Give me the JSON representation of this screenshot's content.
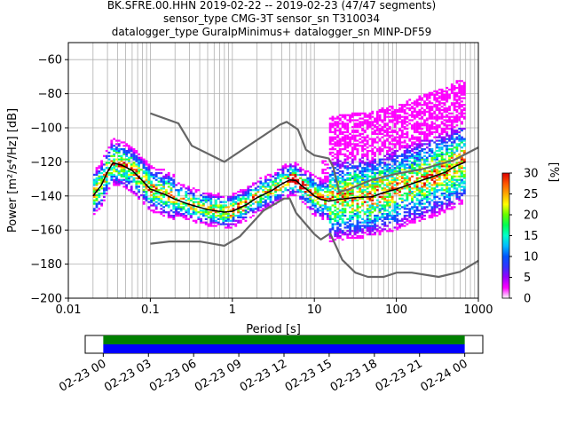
{
  "title": {
    "line1": "BK.SFRE.00.HHN   2019-02-22 -- 2019-02-23  (47/47 segments)",
    "line2": "sensor_type CMG-3T sensor_sn T310034",
    "line3": "datalogger_type GuralpMinimus+ datalogger_sn MINP-DF59"
  },
  "chart_data": [
    {
      "type": "heatmap",
      "xlabel": "Period [s]",
      "ylabel": "Power [m²/s⁴/Hz] [dB]",
      "xscale": "log",
      "xlim": [
        0.01,
        1000
      ],
      "ylim": [
        -200,
        -50
      ],
      "grid": true,
      "x_ticks": [
        {
          "v": 0.01,
          "label": "0.01"
        },
        {
          "v": 0.1,
          "label": "0.1"
        },
        {
          "v": 1,
          "label": "1"
        },
        {
          "v": 10,
          "label": "10"
        },
        {
          "v": 100,
          "label": "100"
        },
        {
          "v": 1000,
          "label": "1000"
        }
      ],
      "y_ticks": [
        {
          "v": -60,
          "label": "−60"
        },
        {
          "v": -80,
          "label": "−80"
        },
        {
          "v": -100,
          "label": "−100"
        },
        {
          "v": -120,
          "label": "−120"
        },
        {
          "v": -140,
          "label": "−140"
        },
        {
          "v": -160,
          "label": "−160"
        },
        {
          "v": -180,
          "label": "−180"
        },
        {
          "v": -200,
          "label": "−200"
        }
      ],
      "colorbar": {
        "label": "[%]",
        "range": [
          0,
          30
        ],
        "ticks": [
          {
            "v": 0,
            "label": "0"
          },
          {
            "v": 5,
            "label": "5"
          },
          {
            "v": 10,
            "label": "10"
          },
          {
            "v": 15,
            "label": "15"
          },
          {
            "v": 20,
            "label": "20"
          },
          {
            "v": 25,
            "label": "25"
          },
          {
            "v": 30,
            "label": "30"
          }
        ],
        "colors": [
          "#ffffff",
          "#ff00ff",
          "#9900ff",
          "#3333ff",
          "#0055ff",
          "#00bbff",
          "#00ffcc",
          "#00ff55",
          "#66ff00",
          "#ffff00",
          "#ffaa00",
          "#ff5500",
          "#dd0000"
        ]
      },
      "series": [
        {
          "role": "noise-model-high",
          "color": "#666666",
          "x": [
            0.1,
            0.22,
            0.32,
            0.8,
            3.8,
            4.6,
            6.3,
            7.9,
            10,
            15,
            17,
            20,
            25,
            50,
            100,
            200,
            500,
            1000
          ],
          "y": [
            -91.5,
            -97.4,
            -110.5,
            -120,
            -98.2,
            -96.5,
            -101,
            -112.8,
            -116.2,
            -118,
            -123,
            -137.5,
            -136.5,
            -130.5,
            -127,
            -124.5,
            -119,
            -111.5
          ]
        },
        {
          "role": "noise-model-low",
          "color": "#666666",
          "x": [
            0.1,
            0.17,
            0.4,
            0.8,
            1.24,
            2.4,
            4.3,
            5,
            6,
            10,
            12,
            15.6,
            21.9,
            31.6,
            45,
            70,
            101,
            154,
            328,
            600,
            1000
          ],
          "y": [
            -168,
            -166.7,
            -166.7,
            -169.2,
            -163.7,
            -148.6,
            -141.5,
            -141.5,
            -150,
            -162.4,
            -165.5,
            -162,
            -177.5,
            -185,
            -187.5,
            -187.5,
            -185,
            -185,
            -187.5,
            -184.5,
            -178
          ]
        },
        {
          "role": "mode-psd",
          "color": "#000000",
          "x": [
            0.02,
            0.025,
            0.03,
            0.035,
            0.045,
            0.06,
            0.08,
            0.1,
            0.15,
            0.2,
            0.3,
            0.5,
            0.8,
            1,
            1.5,
            2,
            3,
            4,
            5,
            6,
            7,
            8,
            10,
            12,
            15,
            20,
            30,
            50,
            70,
            100,
            150,
            200,
            300,
            400,
            500,
            700
          ],
          "y": [
            -140,
            -134,
            -126,
            -120.5,
            -122,
            -125,
            -131,
            -136,
            -139,
            -142,
            -145,
            -148,
            -149.5,
            -149,
            -145,
            -141,
            -137,
            -133,
            -130.5,
            -131,
            -134,
            -136,
            -140,
            -142,
            -143,
            -142,
            -141,
            -140.5,
            -138,
            -136,
            -133,
            -131,
            -128,
            -126,
            -123,
            -120
          ]
        }
      ]
    },
    {
      "type": "timeline",
      "x_ticks": [
        {
          "v": 0,
          "label": "02-23 00"
        },
        {
          "v": 3,
          "label": "02-23 03"
        },
        {
          "v": 6,
          "label": "02-23 06"
        },
        {
          "v": 9,
          "label": "02-23 09"
        },
        {
          "v": 12,
          "label": "02-23 12"
        },
        {
          "v": 15,
          "label": "02-23 15"
        },
        {
          "v": 18,
          "label": "02-23 18"
        },
        {
          "v": 21,
          "label": "02-23 21"
        },
        {
          "v": 24,
          "label": "02-24 00"
        }
      ],
      "xlim": [
        -1.2,
        25.2
      ],
      "bars": [
        {
          "role": "data-coverage",
          "color": "#008000",
          "start": 0,
          "end": 24
        },
        {
          "role": "psd-coverage",
          "color": "#0000ff",
          "start": 0,
          "end": 24
        }
      ]
    }
  ]
}
